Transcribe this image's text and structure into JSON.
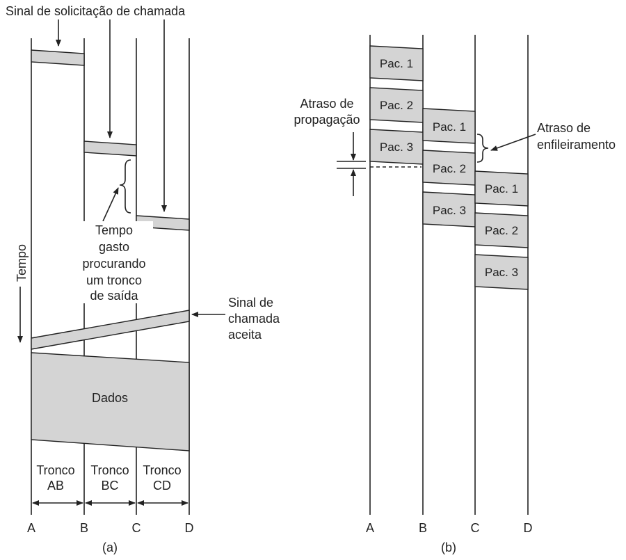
{
  "panel_a": {
    "caption": "(a)",
    "call_request_label": "Sinal de solicitação de chamada",
    "search_time_label": [
      "Tempo",
      "gasto",
      "procurando",
      "um tronco",
      "de saída"
    ],
    "time_axis_label": "Tempo",
    "call_accepted_label": [
      "Sinal de",
      "chamada",
      "aceita"
    ],
    "data_label": "Dados",
    "trunks": [
      {
        "line1": "Tronco",
        "line2": "AB"
      },
      {
        "line1": "Tronco",
        "line2": "BC"
      },
      {
        "line1": "Tronco",
        "line2": "CD"
      }
    ],
    "nodes": [
      "A",
      "B",
      "C",
      "D"
    ]
  },
  "panel_b": {
    "caption": "(b)",
    "propagation_delay_label": [
      "Atraso de",
      "propagação"
    ],
    "queueing_delay_label": [
      "Atraso de",
      "enfileiramento"
    ],
    "packets": {
      "A": [
        "Pac. 1",
        "Pac. 2",
        "Pac. 3"
      ],
      "B": [
        "Pac. 1",
        "Pac. 2",
        "Pac. 3"
      ],
      "C": [
        "Pac. 1",
        "Pac. 2",
        "Pac. 3"
      ]
    },
    "nodes": [
      "A",
      "B",
      "C",
      "D"
    ]
  },
  "colors": {
    "fill": "#d4d4d4",
    "stroke": "#222222"
  }
}
